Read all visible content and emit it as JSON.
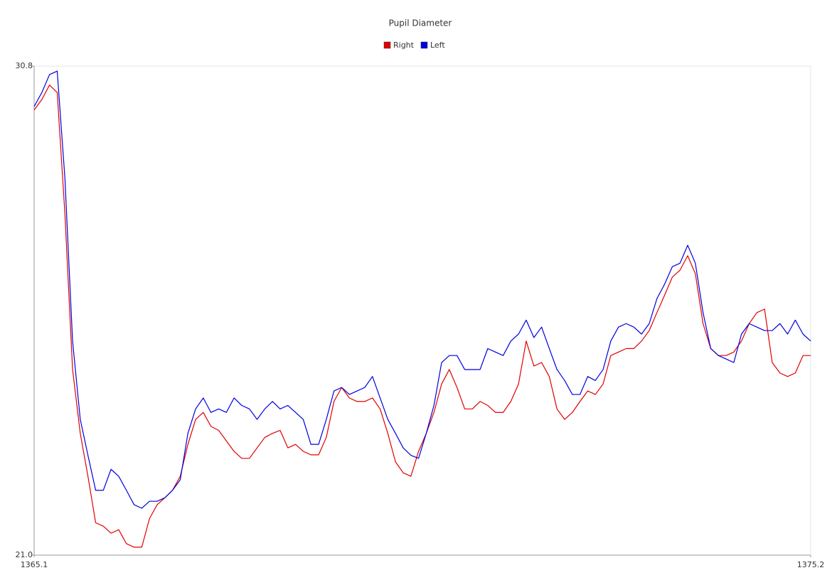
{
  "chart_data": {
    "type": "line",
    "title": "Pupil Diameter",
    "x": [
      1365.1,
      1365.2,
      1365.3,
      1365.4,
      1365.5,
      1365.6,
      1365.7,
      1365.8,
      1365.9,
      1366.0,
      1366.1,
      1366.2,
      1366.3,
      1366.4,
      1366.5,
      1366.6,
      1366.7,
      1366.8,
      1366.9,
      1367.0,
      1367.1,
      1367.2,
      1367.3,
      1367.4,
      1367.5,
      1367.6,
      1367.7,
      1367.8,
      1367.9,
      1368.0,
      1368.1,
      1368.2,
      1368.3,
      1368.4,
      1368.5,
      1368.6,
      1368.7,
      1368.8,
      1368.9,
      1369.0,
      1369.1,
      1369.2,
      1369.3,
      1369.4,
      1369.5,
      1369.6,
      1369.7,
      1369.8,
      1369.9,
      1370.0,
      1370.1,
      1370.2,
      1370.3,
      1370.4,
      1370.5,
      1370.6,
      1370.7,
      1370.8,
      1370.9,
      1371.0,
      1371.1,
      1371.2,
      1371.3,
      1371.4,
      1371.5,
      1371.6,
      1371.7,
      1371.8,
      1371.9,
      1372.0,
      1372.1,
      1372.2,
      1372.3,
      1372.4,
      1372.5,
      1372.6,
      1372.7,
      1372.8,
      1372.9,
      1373.0,
      1373.1,
      1373.2,
      1373.3,
      1373.4,
      1373.5,
      1373.6,
      1373.7,
      1373.8,
      1373.9,
      1374.0,
      1374.1,
      1374.2,
      1374.3,
      1374.4,
      1374.5,
      1374.6,
      1374.7,
      1374.8,
      1374.9,
      1375.0,
      1375.1,
      1375.2
    ],
    "series": [
      {
        "name": "Right",
        "color": "#e00000",
        "values": [
          29.92,
          30.13,
          30.42,
          30.27,
          27.85,
          24.72,
          23.44,
          22.58,
          21.65,
          21.58,
          21.44,
          21.51,
          21.23,
          21.16,
          21.16,
          21.73,
          22.01,
          22.15,
          22.3,
          22.58,
          23.22,
          23.72,
          23.86,
          23.58,
          23.5,
          23.29,
          23.08,
          22.94,
          22.94,
          23.15,
          23.36,
          23.44,
          23.5,
          23.15,
          23.22,
          23.08,
          23.01,
          23.01,
          23.36,
          24.08,
          24.36,
          24.15,
          24.08,
          24.08,
          24.15,
          23.93,
          23.44,
          22.87,
          22.65,
          22.58,
          23.08,
          23.44,
          23.86,
          24.43,
          24.72,
          24.36,
          23.93,
          23.93,
          24.08,
          24.0,
          23.86,
          23.86,
          24.08,
          24.43,
          25.29,
          24.79,
          24.86,
          24.58,
          23.93,
          23.72,
          23.86,
          24.08,
          24.29,
          24.22,
          24.43,
          25.0,
          25.07,
          25.14,
          25.14,
          25.29,
          25.5,
          25.86,
          26.21,
          26.57,
          26.71,
          27.0,
          26.64,
          25.64,
          25.14,
          25.0,
          25.0,
          25.07,
          25.29,
          25.64,
          25.86,
          25.93,
          24.86,
          24.65,
          24.58,
          24.65,
          25.0,
          25.0
        ]
      },
      {
        "name": "Left",
        "color": "#0000e0",
        "values": [
          29.99,
          30.27,
          30.63,
          30.7,
          28.56,
          25.29,
          23.72,
          23.0,
          22.3,
          22.3,
          22.72,
          22.58,
          22.3,
          22.01,
          21.94,
          22.08,
          22.08,
          22.15,
          22.3,
          22.51,
          23.44,
          23.93,
          24.15,
          23.86,
          23.93,
          23.86,
          24.15,
          24.0,
          23.93,
          23.72,
          23.93,
          24.08,
          23.93,
          24.0,
          23.86,
          23.72,
          23.22,
          23.22,
          23.72,
          24.29,
          24.36,
          24.22,
          24.29,
          24.36,
          24.58,
          24.15,
          23.72,
          23.44,
          23.15,
          23.0,
          22.94,
          23.44,
          24.0,
          24.86,
          25.0,
          25.0,
          24.72,
          24.72,
          24.72,
          25.14,
          25.07,
          25.0,
          25.29,
          25.43,
          25.71,
          25.36,
          25.57,
          25.14,
          24.72,
          24.5,
          24.22,
          24.22,
          24.58,
          24.5,
          24.72,
          25.29,
          25.57,
          25.64,
          25.57,
          25.43,
          25.64,
          26.14,
          26.43,
          26.78,
          26.85,
          27.21,
          26.85,
          25.86,
          25.14,
          25.0,
          24.93,
          24.86,
          25.43,
          25.64,
          25.57,
          25.5,
          25.5,
          25.64,
          25.43,
          25.71,
          25.43,
          25.29
        ]
      }
    ],
    "xlim": [
      1365.1,
      1375.2
    ],
    "xticks": [
      1365.1,
      1375.2
    ],
    "ylim": [
      21,
      30.8
    ],
    "yticks": [
      {
        "value": 21,
        "label": "21.0"
      },
      30.8
    ],
    "legend": "top"
  }
}
